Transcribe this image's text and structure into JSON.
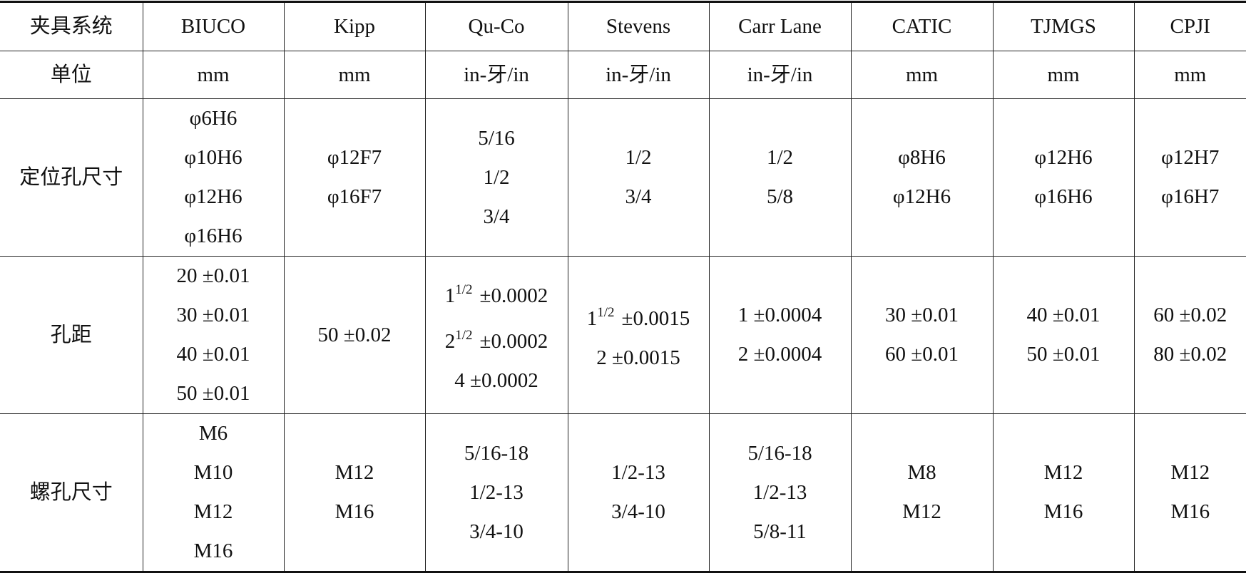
{
  "table": {
    "header": [
      "夹具系统",
      "BIUCO",
      "Kipp",
      "Qu-Co",
      "Stevens",
      "Carr Lane",
      "CATIC",
      "TJMGS",
      "CPJI"
    ],
    "rows": [
      [
        "单位",
        "mm",
        "mm",
        "in-牙/in",
        "in-牙/in",
        "in-牙/in",
        "mm",
        "mm",
        "mm"
      ],
      [
        "定位孔尺寸",
        [
          "φ6H6",
          "φ10H6",
          "φ12H6",
          "φ16H6"
        ],
        [
          "φ12F7",
          "φ16F7"
        ],
        [
          "5/16",
          "1/2",
          "3/4"
        ],
        [
          "1/2",
          "3/4"
        ],
        [
          "1/2",
          "5/8"
        ],
        [
          "φ8H6",
          "φ12H6"
        ],
        [
          "φ12H6",
          "φ16H6"
        ],
        [
          "φ12H7",
          "φ16H7"
        ]
      ],
      [
        "孔距",
        [
          "20 ±0.01",
          "30 ±0.01",
          "40 ±0.01",
          "50 ±0.01"
        ],
        [
          "50 ±0.02"
        ],
        [
          {
            "whole": "1",
            "frac": "1/2",
            "tol": "±0.0002"
          },
          {
            "whole": "2",
            "frac": "1/2",
            "tol": "±0.0002"
          },
          "4 ±0.0002"
        ],
        [
          {
            "whole": "1",
            "frac": "1/2",
            "tol": "±0.0015"
          },
          "2 ±0.0015"
        ],
        [
          "1 ±0.0004",
          "2 ±0.0004"
        ],
        [
          "30 ±0.01",
          "60 ±0.01"
        ],
        [
          "40 ±0.01",
          "50 ±0.01"
        ],
        [
          "60 ±0.02",
          "80 ±0.02"
        ]
      ],
      [
        "螺孔尺寸",
        [
          "M6",
          "M10",
          "M12",
          "M16"
        ],
        [
          "M12",
          "M16"
        ],
        [
          "5/16-18",
          "1/2-13",
          "3/4-10"
        ],
        [
          "1/2-13",
          "3/4-10"
        ],
        [
          "5/16-18",
          "1/2-13",
          "5/8-11"
        ],
        [
          "M8",
          "M12"
        ],
        [
          "M12",
          "M16"
        ],
        [
          "M12",
          "M16"
        ]
      ]
    ]
  }
}
